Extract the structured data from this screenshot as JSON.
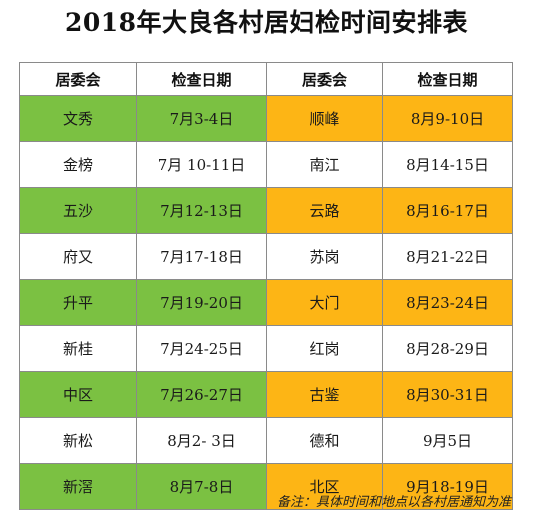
{
  "title": "2018年大良各村居妇检时间安排表",
  "table": {
    "headers": [
      "居委会",
      "检查日期",
      "居委会",
      "检查日期"
    ],
    "rows": [
      [
        "文秀",
        "7月3-4日",
        "顺峰",
        "8月9-10日"
      ],
      [
        "金榜",
        "7月 10-11日",
        "南江",
        "8月14-15日"
      ],
      [
        "五沙",
        "7月12-13日",
        "云路",
        "8月16-17日"
      ],
      [
        "府又",
        "7月17-18日",
        "苏岗",
        "8月21-22日"
      ],
      [
        "升平",
        "7月19-20日",
        "大门",
        "8月23-24日"
      ],
      [
        "新桂",
        "7月24-25日",
        "红岗",
        "8月28-29日"
      ],
      [
        "中区",
        "7月26-27日",
        "古鉴",
        "8月30-31日"
      ],
      [
        "新松",
        "8月2- 3日",
        "德和",
        "9月5日"
      ],
      [
        "新滘",
        "8月7-8日",
        "北区",
        "9月18-19日"
      ]
    ]
  },
  "note": "备注：具体时间和地点以各村居通知为准",
  "colors": {
    "green_highlight": "#7bc142",
    "orange_highlight": "#fdb515",
    "border": "#8a8a8a"
  }
}
